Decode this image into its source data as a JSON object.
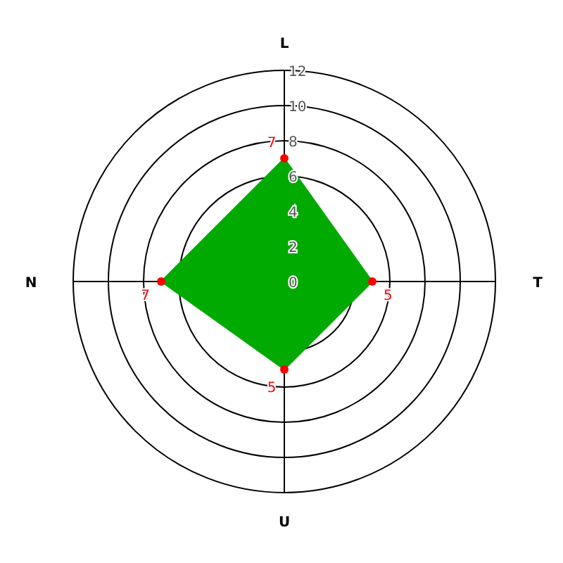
{
  "chart_data": {
    "type": "radar",
    "categories": [
      "L",
      "T",
      "U",
      "N"
    ],
    "series": [
      {
        "color": "#00aa00",
        "values": [
          7,
          5,
          5,
          7
        ]
      }
    ],
    "ylim": [
      0,
      12
    ],
    "yticks": [
      0,
      2,
      4,
      6,
      8,
      10,
      12
    ],
    "grid": true,
    "marker": "circle",
    "data_labels": true
  }
}
